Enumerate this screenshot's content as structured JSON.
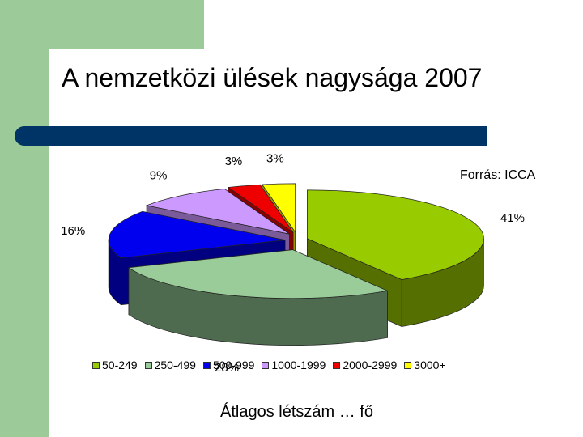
{
  "slide": {
    "title": "A nemzetközi ülések nagysága 2007",
    "source": "Forrás: ICCA",
    "caption": "Átlagos létszám … fő"
  },
  "chart_data": {
    "type": "pie",
    "style": "3d-exploded",
    "categories": [
      "50-249",
      "250-499",
      "500-999",
      "1000-1999",
      "2000-2999",
      "3000+"
    ],
    "values": [
      41,
      28,
      16,
      9,
      3,
      3
    ],
    "value_labels": [
      "41%",
      "28%",
      "16%",
      "9%",
      "3%",
      "3%"
    ],
    "colors": [
      "#99cc00",
      "#99cc99",
      "#0000ee",
      "#cc99ff",
      "#ee0000",
      "#ffff00"
    ],
    "side_colors": [
      "#557000",
      "#4f6b4f",
      "#000080",
      "#7a5a99",
      "#880000",
      "#999900"
    ],
    "legend_position": "bottom"
  }
}
